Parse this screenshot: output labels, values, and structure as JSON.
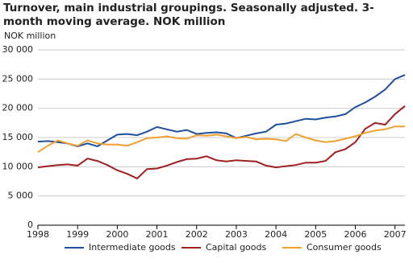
{
  "chart_data": {
    "type": "line",
    "title": "Turnover, main industrial groupings. Seasonally adjusted. 3-month moving average. NOK million",
    "y_label": "NOK million",
    "x": [
      1998,
      1998.25,
      1998.5,
      1998.75,
      1999,
      1999.25,
      1999.5,
      1999.75,
      2000,
      2000.25,
      2000.5,
      2000.75,
      2001,
      2001.25,
      2001.5,
      2001.75,
      2002,
      2002.25,
      2002.5,
      2002.75,
      2003,
      2003.25,
      2003.5,
      2003.75,
      2004,
      2004.25,
      2004.5,
      2004.75,
      2005,
      2005.25,
      2005.5,
      2005.75,
      2006,
      2006.25,
      2006.5,
      2006.75,
      2007,
      2007.25
    ],
    "series": [
      {
        "name": "Intermediate goods",
        "color": "#1f4e9c",
        "values": [
          14300,
          14400,
          14200,
          14000,
          13500,
          14000,
          13500,
          14500,
          15500,
          15600,
          15400,
          16000,
          16800,
          16400,
          16000,
          16300,
          15600,
          15800,
          15900,
          15700,
          14900,
          15300,
          15700,
          16000,
          17200,
          17400,
          17800,
          18200,
          18100,
          18400,
          18600,
          19000,
          20200,
          21000,
          22000,
          23200,
          25000,
          25700
        ]
      },
      {
        "name": "Capital goods",
        "color": "#a02020",
        "values": [
          9900,
          10100,
          10300,
          10400,
          10200,
          11400,
          11000,
          10300,
          9400,
          8800,
          8000,
          9600,
          9700,
          10200,
          10800,
          11300,
          11400,
          11800,
          11100,
          10900,
          11100,
          11000,
          10900,
          10200,
          9900,
          10100,
          10300,
          10700,
          10700,
          11000,
          12500,
          13000,
          14200,
          16500,
          17500,
          17200,
          19000,
          20400
        ]
      },
      {
        "name": "Consumer goods",
        "color": "#f0a030",
        "values": [
          12500,
          13600,
          14500,
          14000,
          13600,
          14500,
          14000,
          13800,
          13800,
          13600,
          14200,
          14900,
          15000,
          15200,
          14900,
          14800,
          15400,
          15300,
          15500,
          15200,
          14900,
          15100,
          14700,
          14800,
          14700,
          14400,
          15600,
          15000,
          14500,
          14200,
          14400,
          14800,
          15200,
          15800,
          16200,
          16400,
          16900,
          16900
        ]
      }
    ],
    "xlim": [
      1998,
      2007.25
    ],
    "xticks": [
      1998,
      1999,
      2000,
      2001,
      2002,
      2003,
      2004,
      2005,
      2006,
      2007
    ],
    "ylim": [
      0,
      30000
    ],
    "yticks": [
      0,
      {
        "value": 5000,
        "label": "5 000"
      },
      {
        "value": 10000,
        "label": "10 000"
      },
      {
        "value": 15000,
        "label": "15 000"
      },
      {
        "value": 20000,
        "label": "20 000"
      },
      {
        "value": 25000,
        "label": "25 000"
      },
      {
        "value": 30000,
        "label": "30 000"
      }
    ],
    "grid": true,
    "legend": "bottom"
  }
}
